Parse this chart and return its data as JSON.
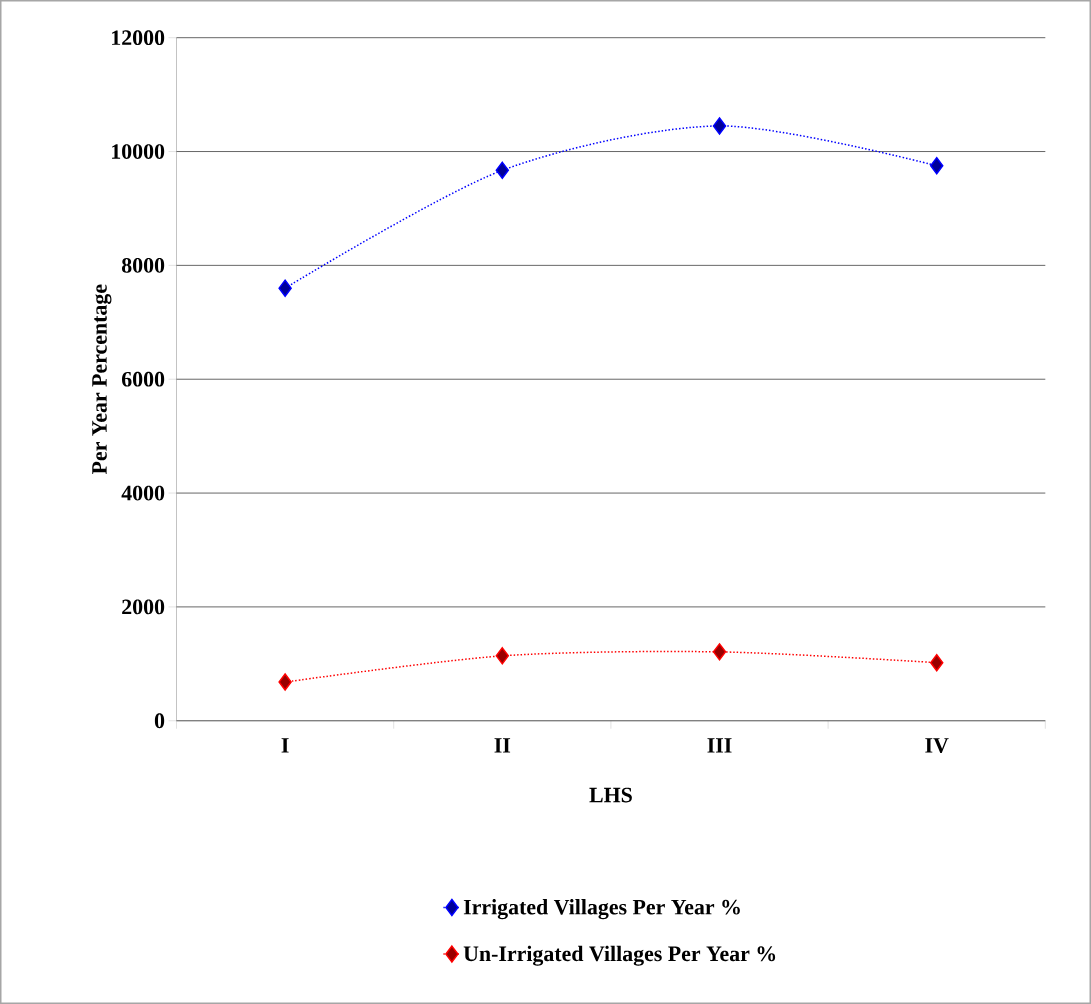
{
  "chart_data": {
    "type": "line",
    "xlabel": "LHS",
    "ylabel": "Per Year Percentage",
    "categories": [
      "I",
      "II",
      "III",
      "IV"
    ],
    "series": [
      {
        "name": "Irrigated Villages Per Year %",
        "color": "#0000ff",
        "values": [
          7600,
          9670,
          10450,
          9750
        ]
      },
      {
        "name": "Un-Irrigated Villages Per Year %",
        "color": "#ff0000",
        "values": [
          680,
          1140,
          1210,
          1020
        ]
      }
    ],
    "ylim": [
      0,
      12000
    ],
    "yticks": [
      0,
      2000,
      4000,
      6000,
      8000,
      10000,
      12000
    ],
    "grid": "y",
    "legend": "bottom",
    "marker": "diamond",
    "line_style": "dotted"
  }
}
